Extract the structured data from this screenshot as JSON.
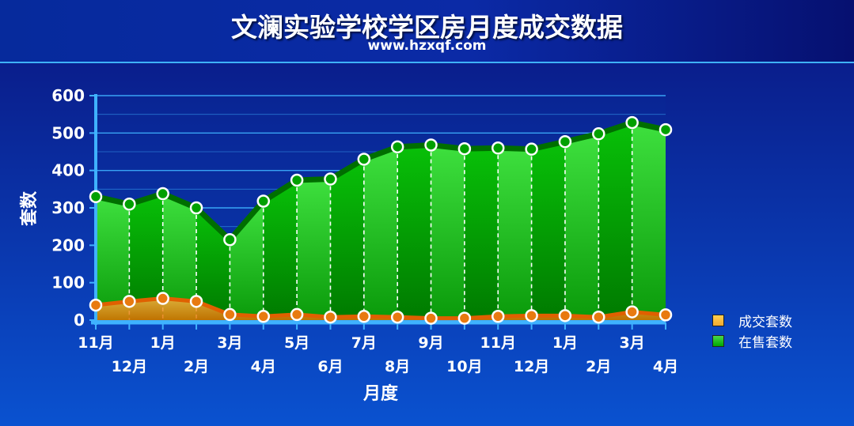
{
  "title": "文澜实验学校学区房月度成交数据",
  "subtitle": "www.hzxqf.com",
  "colors": {
    "deal_fill": "#f0a830",
    "deal_line": "#e06000",
    "stock_fill_light": "#4ad84a",
    "stock_fill_dark": "#00a800",
    "stock_line": "#006e00",
    "grid": "#3fb2ff"
  },
  "chart_data": {
    "type": "area",
    "title": "文澜实验学校学区房月度成交数据",
    "xlabel": "月度",
    "ylabel": "套数",
    "ylim": [
      0,
      600
    ],
    "yticks": [
      0,
      100,
      200,
      300,
      400,
      500,
      600
    ],
    "categories": [
      "11月",
      "12月",
      "1月",
      "2月",
      "3月",
      "4月",
      "5月",
      "6月",
      "7月",
      "8月",
      "9月",
      "10月",
      "11月",
      "12月",
      "1月",
      "2月",
      "3月",
      "4月"
    ],
    "series": [
      {
        "name": "成交套数",
        "values": [
          40,
          50,
          58,
          50,
          15,
          10,
          15,
          8,
          10,
          8,
          5,
          5,
          10,
          12,
          12,
          8,
          22,
          14
        ]
      },
      {
        "name": "在售套数",
        "values": [
          330,
          310,
          338,
          300,
          215,
          318,
          374,
          377,
          430,
          463,
          468,
          458,
          460,
          457,
          477,
          498,
          528,
          509
        ]
      }
    ],
    "legend": "right",
    "grid": true
  }
}
